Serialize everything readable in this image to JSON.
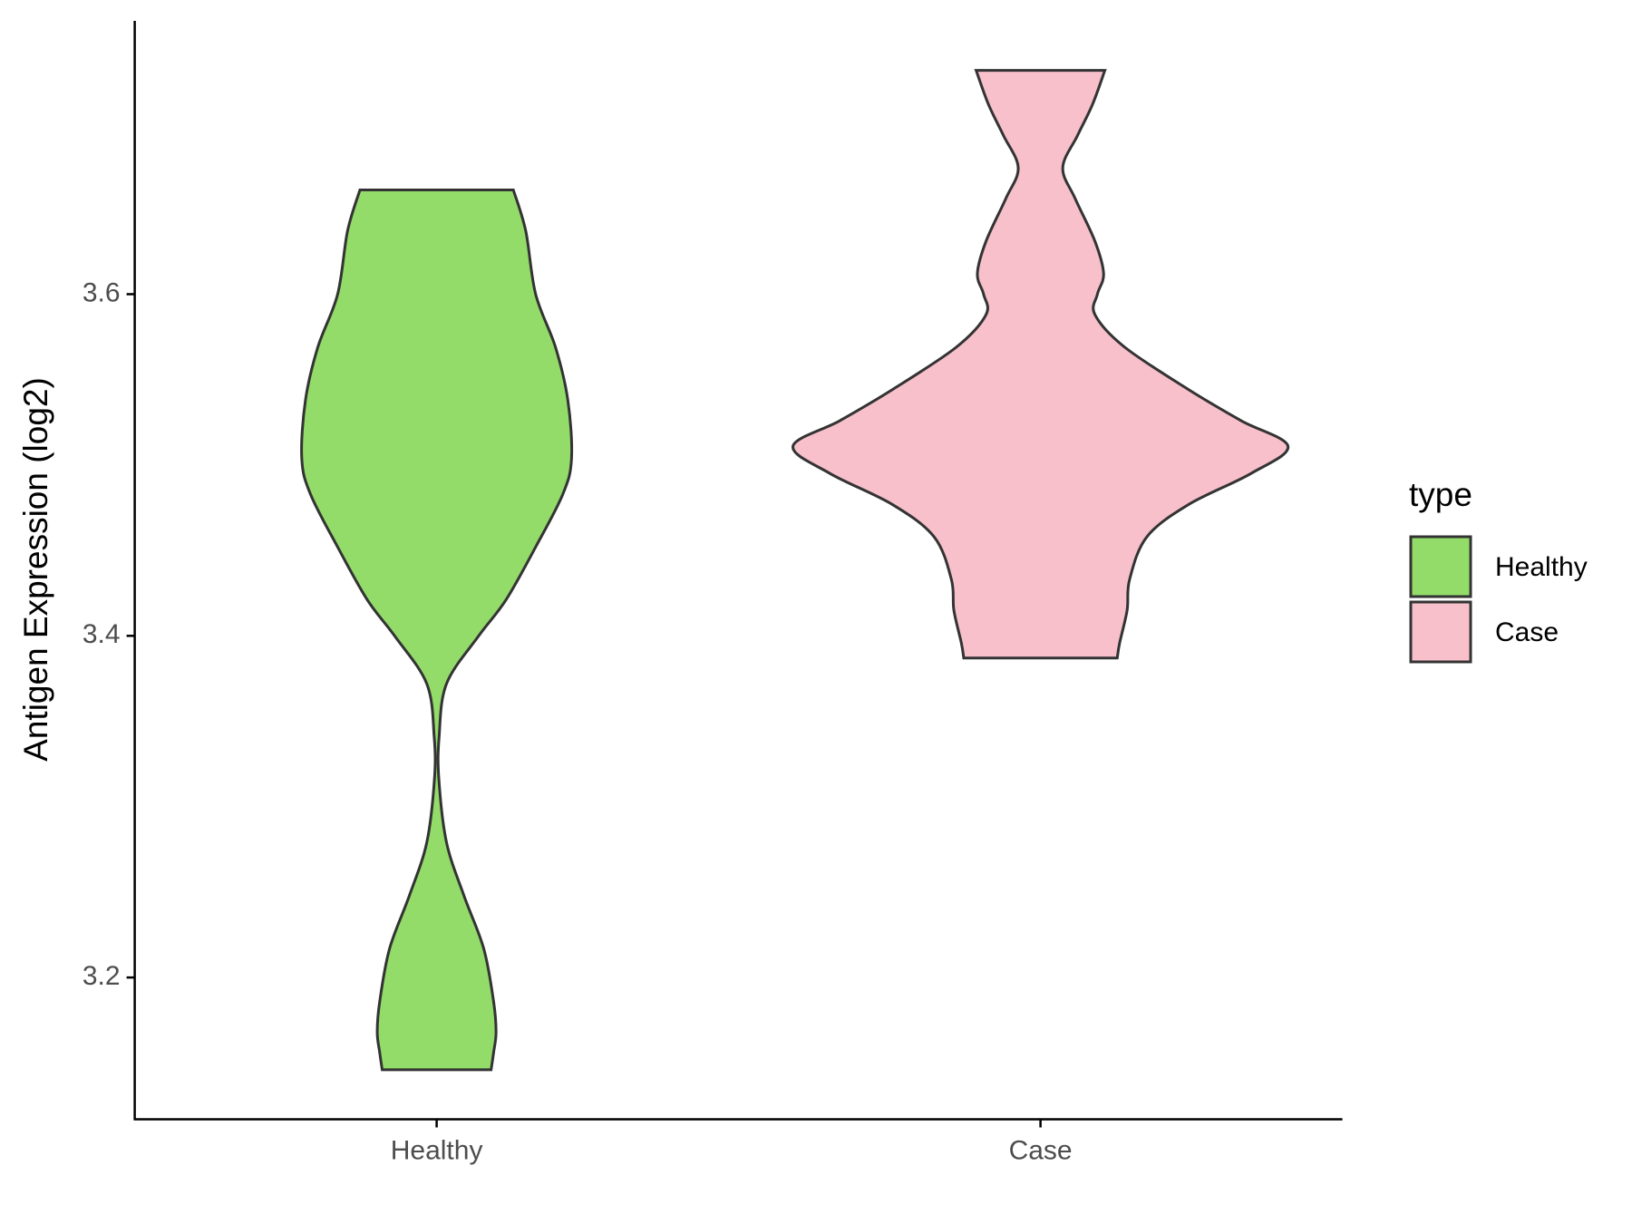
{
  "chart_data": {
    "type": "violin",
    "y_label": "Antigen Expression (log2)",
    "categories": [
      "Healthy",
      "Case"
    ],
    "legend_title": "type",
    "legend": "right",
    "ylim": [
      3.117,
      3.76
    ],
    "yticks": [
      3.2,
      3.4,
      3.6
    ],
    "series": [
      {
        "name": "Healthy",
        "color": "#93dc6a",
        "y": [
          3.661,
          3.637,
          3.6,
          3.569,
          3.538,
          3.504,
          3.483,
          3.452,
          3.421,
          3.4,
          3.372,
          3.341,
          3.316,
          3.279,
          3.248,
          3.217,
          3.186,
          3.168,
          3.156,
          3.146
        ],
        "width": [
          0.31,
          0.36,
          0.4,
          0.48,
          0.53,
          0.545,
          0.51,
          0.4,
          0.28,
          0.17,
          0.04,
          0.01,
          0.009,
          0.04,
          0.11,
          0.19,
          0.23,
          0.24,
          0.23,
          0.22
        ]
      },
      {
        "name": "Case",
        "color": "#f7c0cb",
        "y": [
          3.731,
          3.711,
          3.693,
          3.674,
          3.656,
          3.631,
          3.612,
          3.6,
          3.588,
          3.569,
          3.544,
          3.526,
          3.511,
          3.495,
          3.477,
          3.458,
          3.433,
          3.415,
          3.396,
          3.387
        ],
        "width": [
          0.26,
          0.21,
          0.15,
          0.09,
          0.14,
          0.22,
          0.255,
          0.23,
          0.22,
          0.34,
          0.6,
          0.81,
          1,
          0.85,
          0.6,
          0.43,
          0.36,
          0.35,
          0.32,
          0.31
        ]
      }
    ]
  }
}
